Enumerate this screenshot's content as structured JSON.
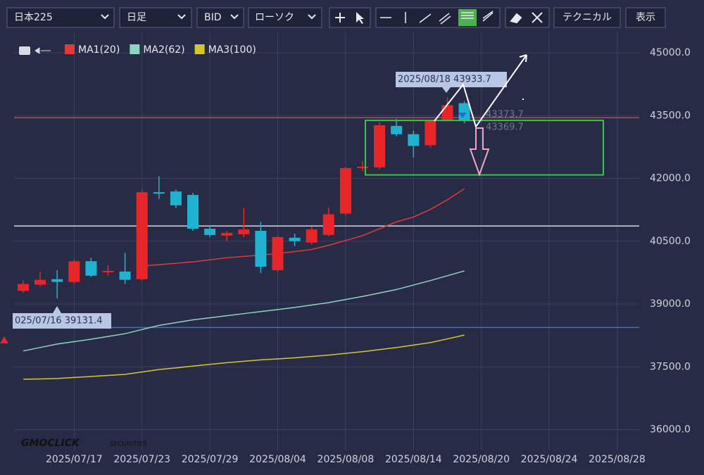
{
  "toolbar": {
    "symbol": "日本225",
    "period": "日足",
    "side": "BID",
    "style": "ローソク",
    "technical": "テクニカル",
    "display": "表示"
  },
  "logo": {
    "brand": "GMOCLICK",
    "suffix": "SECURITIES"
  },
  "chart_data": {
    "type": "candlestick",
    "up_color": "#e8262a",
    "down_color": "#1fb3d1",
    "categories": [
      null,
      null,
      null,
      "2025/07/17",
      null,
      null,
      null,
      "2025/07/23",
      null,
      null,
      null,
      "2025/07/29",
      null,
      null,
      null,
      "2025/08/04",
      null,
      null,
      null,
      "2025/08/08",
      null,
      null,
      null,
      "2025/08/14",
      null,
      null,
      null,
      "2025/08/20",
      null,
      null,
      null,
      "2025/08/24",
      null,
      null,
      null,
      "2025/08/28"
    ],
    "open": [
      39313,
      39461,
      39593,
      39527,
      40022,
      39758,
      39775,
      39593,
      41670,
      41687,
      41604,
      40797,
      40632,
      40665,
      40747,
      39808,
      40582,
      40467,
      40648,
      41159,
      42247,
      42264,
      43253,
      43055,
      42791,
      43401,
      43797,
      null,
      null,
      null,
      null,
      null,
      null,
      null,
      null,
      null
    ],
    "high": [
      39560,
      39775,
      39808,
      40055,
      40104,
      39923,
      40220,
      41720,
      42050,
      41736,
      41654,
      40879,
      40747,
      41291,
      40962,
      40632,
      40681,
      40846,
      41308,
      42280,
      42412,
      43335,
      43418,
      43137,
      43401,
      43933.7,
      43846,
      null,
      null,
      null,
      null,
      null,
      null,
      null,
      null,
      null
    ],
    "low": [
      39264,
      39412,
      39131.4,
      39478,
      39643,
      39676,
      39478,
      39560,
      41505,
      41291,
      40747,
      40599,
      40500,
      40599,
      39742,
      39775,
      40385,
      40418,
      40615,
      41126,
      42181,
      42214,
      43006,
      42495,
      42742,
      43385,
      43319,
      null,
      null,
      null,
      null,
      null,
      null,
      null,
      null,
      null
    ],
    "close": [
      39478,
      39577,
      39527,
      40022,
      39676,
      39791,
      39577,
      41670,
      41637,
      41357,
      40797,
      40648,
      40698,
      40780,
      39890,
      40599,
      40500,
      40780,
      41143,
      42247,
      42280,
      43269,
      43055,
      42775,
      43368,
      43747,
      43369.7,
      null,
      null,
      null,
      null,
      null,
      null,
      null,
      null,
      null
    ],
    "series": [
      {
        "name": "MA1(20)",
        "color": "#e23a3a",
        "values": [
          null,
          null,
          null,
          null,
          null,
          null,
          null,
          39907,
          39940,
          39973,
          40006,
          40055,
          40104,
          40137,
          40170,
          40203,
          40253,
          40302,
          40401,
          40516,
          40632,
          40797,
          40962,
          41077,
          41258,
          41489,
          41753,
          null,
          null,
          null,
          null,
          null,
          null,
          null,
          null,
          null
        ]
      },
      {
        "name": "MA2(62)",
        "color": "#8fd3c1",
        "values": [
          37879,
          37961,
          38044,
          38101,
          38159,
          38225,
          38291,
          38390,
          38489,
          38555,
          38621,
          38670,
          38720,
          38770,
          38819,
          38868,
          38918,
          38975,
          39033,
          39107,
          39181,
          39263,
          39346,
          39453,
          39560,
          39675,
          39791,
          null,
          null,
          null,
          null,
          null,
          null,
          null,
          null,
          null
        ]
      },
      {
        "name": "MA3(100)",
        "color": "#d4c72a",
        "values": [
          37203,
          37211,
          37220,
          37245,
          37269,
          37294,
          37319,
          37376,
          37434,
          37475,
          37517,
          37558,
          37599,
          37632,
          37665,
          37690,
          37714,
          37747,
          37780,
          37821,
          37862,
          37911,
          37961,
          38019,
          38077,
          38167,
          38258,
          null,
          null,
          null,
          null,
          null,
          null,
          null,
          null,
          null
        ]
      }
    ],
    "hlines": [
      {
        "value": 43450,
        "color": "#c8444c"
      },
      {
        "value": 40863,
        "color": "#d8d8e0"
      },
      {
        "value": 38440,
        "color": "#3d70c8"
      }
    ],
    "range_box": {
      "low": 42083,
      "high": 43384,
      "color": "#2ecc40"
    },
    "annotations": [
      "2025/08/18 43933.7",
      "025/07/16 39131.4",
      "43373.7",
      "43369.7"
    ],
    "ylim": [
      35500,
      45500
    ],
    "yticks": [
      {
        "value": 36000,
        "label": "36000.0"
      },
      {
        "value": 37500,
        "label": "37500.0"
      },
      {
        "value": 39000,
        "label": "39000.0"
      },
      {
        "value": 40500,
        "label": "40500.0"
      },
      {
        "value": 42000,
        "label": "42000.0"
      },
      {
        "value": 43500,
        "label": "43500.0"
      },
      {
        "value": 45000,
        "label": "45000.0"
      }
    ],
    "grid": true
  }
}
